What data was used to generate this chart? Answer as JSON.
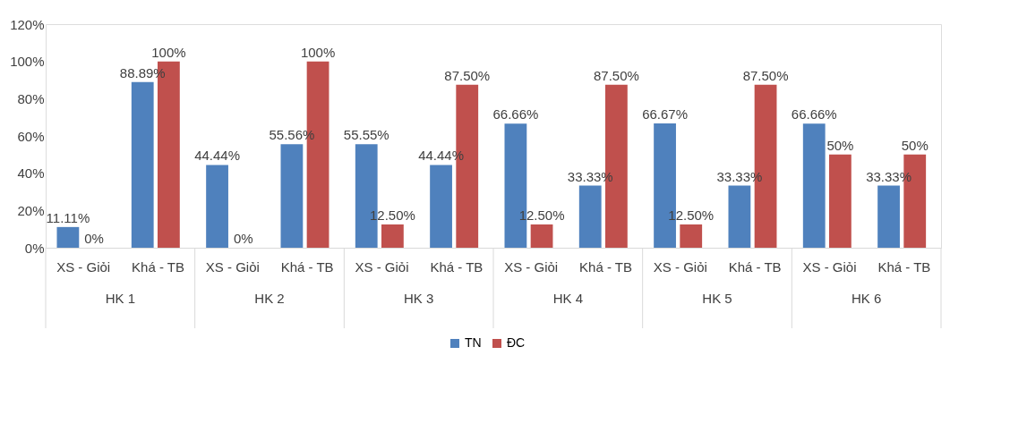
{
  "chart_data": {
    "type": "bar",
    "categories": [
      "XS - Giỏi",
      "Khá - TB",
      "XS - Giỏi",
      "Khá - TB",
      "XS - Giỏi",
      "Khá - TB",
      "XS - Giỏi",
      "Khá - TB",
      "XS - Giỏi",
      "Khá - TB",
      "XS - Giỏi",
      "Khá - TB"
    ],
    "series": [
      {
        "name": "TN",
        "color": "#4f81bd",
        "values": [
          11.11,
          88.89,
          44.44,
          55.56,
          55.55,
          44.44,
          66.66,
          33.33,
          66.67,
          33.33,
          66.66,
          33.33
        ],
        "value_labels": [
          "11.11%",
          "88.89%",
          "44.44%",
          "55.56%",
          "55.55%",
          "44.44%",
          "66.66%",
          "33.33%",
          "66.67%",
          "33.33%",
          "66.66%",
          "33.33%"
        ]
      },
      {
        "name": "ĐC",
        "color": "#c0504d",
        "values": [
          0,
          100,
          0,
          100,
          12.5,
          87.5,
          12.5,
          87.5,
          12.5,
          87.5,
          50,
          50
        ],
        "value_labels": [
          "0%",
          "100%",
          "0%",
          "100%",
          "12.50%",
          "87.50%",
          "12.50%",
          "87.50%",
          "12.50%",
          "87.50%",
          "50%",
          "50%"
        ]
      }
    ],
    "annotations": [
      "HK 1",
      "HK 2",
      "HK 3",
      "HK 4",
      "HK 5",
      "HK 6"
    ],
    "ylim": [
      0,
      120
    ],
    "yticks": [
      {
        "value": 0,
        "label": "0%"
      },
      {
        "value": 20,
        "label": "20%"
      },
      {
        "value": 40,
        "label": "40%"
      },
      {
        "value": 60,
        "label": "60%"
      },
      {
        "value": 80,
        "label": "80%"
      },
      {
        "value": 100,
        "label": "100%"
      },
      {
        "value": 120,
        "label": "120%"
      }
    ],
    "grid": false,
    "legend": "bottom"
  }
}
